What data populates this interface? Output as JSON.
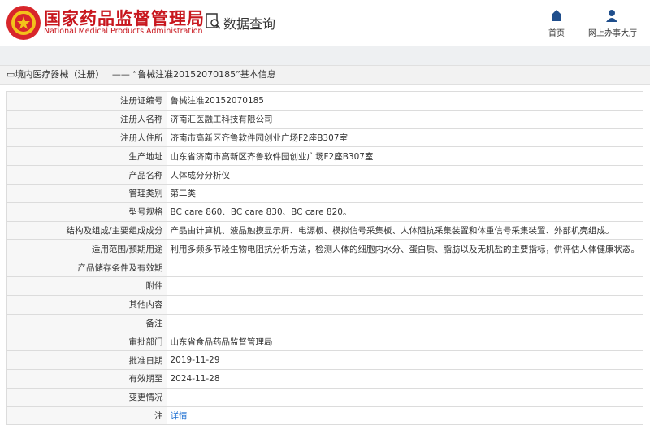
{
  "header": {
    "title": "国家药品监督管理局",
    "subtitle": "National Medical Products Administration",
    "section": "数据查询",
    "nav": [
      "首页",
      "网上办事大厅"
    ]
  },
  "breadcrumb": {
    "category": "境内医疗器械（注册）",
    "separator": "——",
    "record": "“鲁械注准20152070185”基本信息"
  },
  "table": {
    "rows": [
      {
        "label": "注册证编号",
        "value": "鲁械注准20152070185"
      },
      {
        "label": "注册人名称",
        "value": "济南汇医融工科技有限公司"
      },
      {
        "label": "注册人住所",
        "value": "济南市高新区齐鲁软件园创业广场F2座B307室"
      },
      {
        "label": "生产地址",
        "value": "山东省济南市高新区齐鲁软件园创业广场F2座B307室"
      },
      {
        "label": "产品名称",
        "value": "人体成分分析仪"
      },
      {
        "label": "管理类别",
        "value": "第二类"
      },
      {
        "label": "型号规格",
        "value": "BC care 860、BC care 830、BC care 820。"
      },
      {
        "label": "结构及组成/主要组成成分",
        "value": "产品由计算机、液晶触摸显示屏、电源板、模拟信号采集板、人体阻抗采集装置和体重信号采集装置、外部机壳组成。"
      },
      {
        "label": "适用范围/预期用途",
        "value": "利用多频多节段生物电阻抗分析方法，检测人体的细胞内水分、蛋白质、脂肪以及无机盐的主要指标，供评估人体健康状态。"
      },
      {
        "label": "产品储存条件及有效期"
      },
      {
        "label": "附件"
      },
      {
        "label": "其他内容"
      },
      {
        "label": "备注"
      },
      {
        "label": "审批部门",
        "value": "山东省食品药品监督管理局"
      },
      {
        "label": "批准日期",
        "value": "2019-11-29"
      },
      {
        "label": "有效期至",
        "value": "2024-11-28"
      },
      {
        "label": "变更情况"
      },
      {
        "label": "注",
        "value": "详情",
        "link": true
      }
    ]
  }
}
